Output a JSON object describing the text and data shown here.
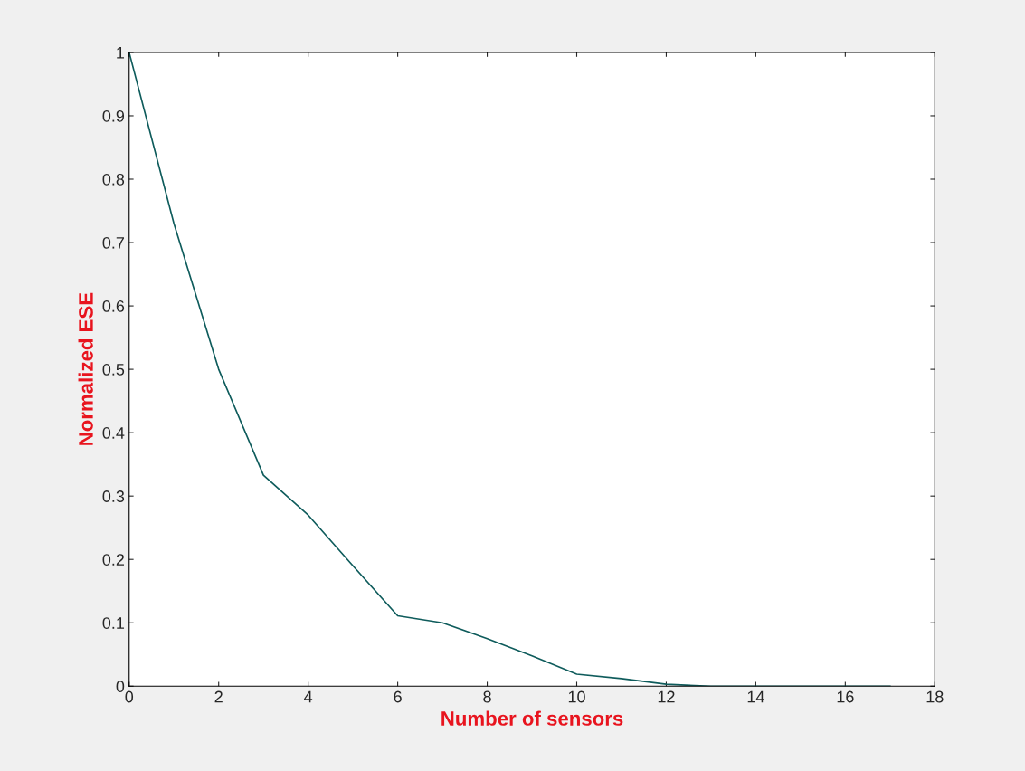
{
  "chart_data": {
    "type": "line",
    "xlabel": "Number of sensors",
    "ylabel": "Normalized ESE",
    "x": [
      0,
      1,
      2,
      3,
      4,
      5,
      6,
      7,
      8,
      9,
      10,
      11,
      12,
      13,
      14,
      15,
      16,
      17
    ],
    "series": [
      {
        "color": "#0f5c5c",
        "values": [
          1,
          0.73,
          0.5,
          0.333,
          0.27,
          0.19,
          0.111,
          0.1,
          0.075,
          0.048,
          0.019,
          0.012,
          0.003,
          0,
          0,
          0,
          0,
          0
        ]
      }
    ],
    "xlim": [
      0,
      18
    ],
    "xticks": [
      0,
      2,
      4,
      6,
      8,
      10,
      12,
      14,
      16,
      18
    ],
    "ylim": [
      0,
      1
    ],
    "yticks": [
      0,
      0.1,
      0.2,
      0.3,
      0.4,
      0.5,
      0.6,
      0.7,
      0.8,
      0.9,
      1
    ],
    "grid": false,
    "marker": "none",
    "line_style": "solid"
  }
}
